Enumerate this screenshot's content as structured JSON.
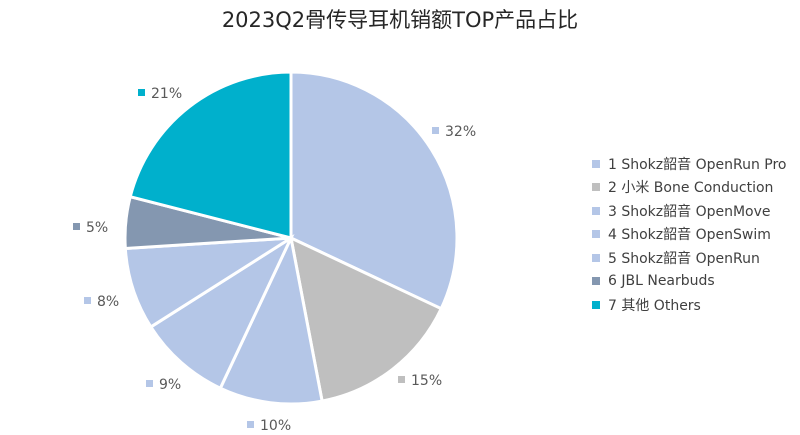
{
  "chart_data": {
    "type": "pie",
    "title": "2023Q2骨传导耳机销额TOP产品占比",
    "categories": [
      "1 Shokz韶音 OpenRun Pro",
      "2 小米 Bone Conduction",
      "3 Shokz韶音 OpenMove",
      "4 Shokz韶音 OpenSwim",
      "5 Shokz韶音 OpenRun",
      "6 JBL Nearbuds",
      "7 其他 Others"
    ],
    "values": [
      32,
      15,
      10,
      9,
      8,
      5,
      21
    ],
    "labels": [
      "32%",
      "15%",
      "10%",
      "9%",
      "8%",
      "5%",
      "21%"
    ],
    "colors": [
      "#b4c6e7",
      "#bfbfbf",
      "#b4c6e7",
      "#b4c6e7",
      "#b4c6e7",
      "#8497b0",
      "#00b0cc"
    ],
    "legend_position": "right"
  }
}
